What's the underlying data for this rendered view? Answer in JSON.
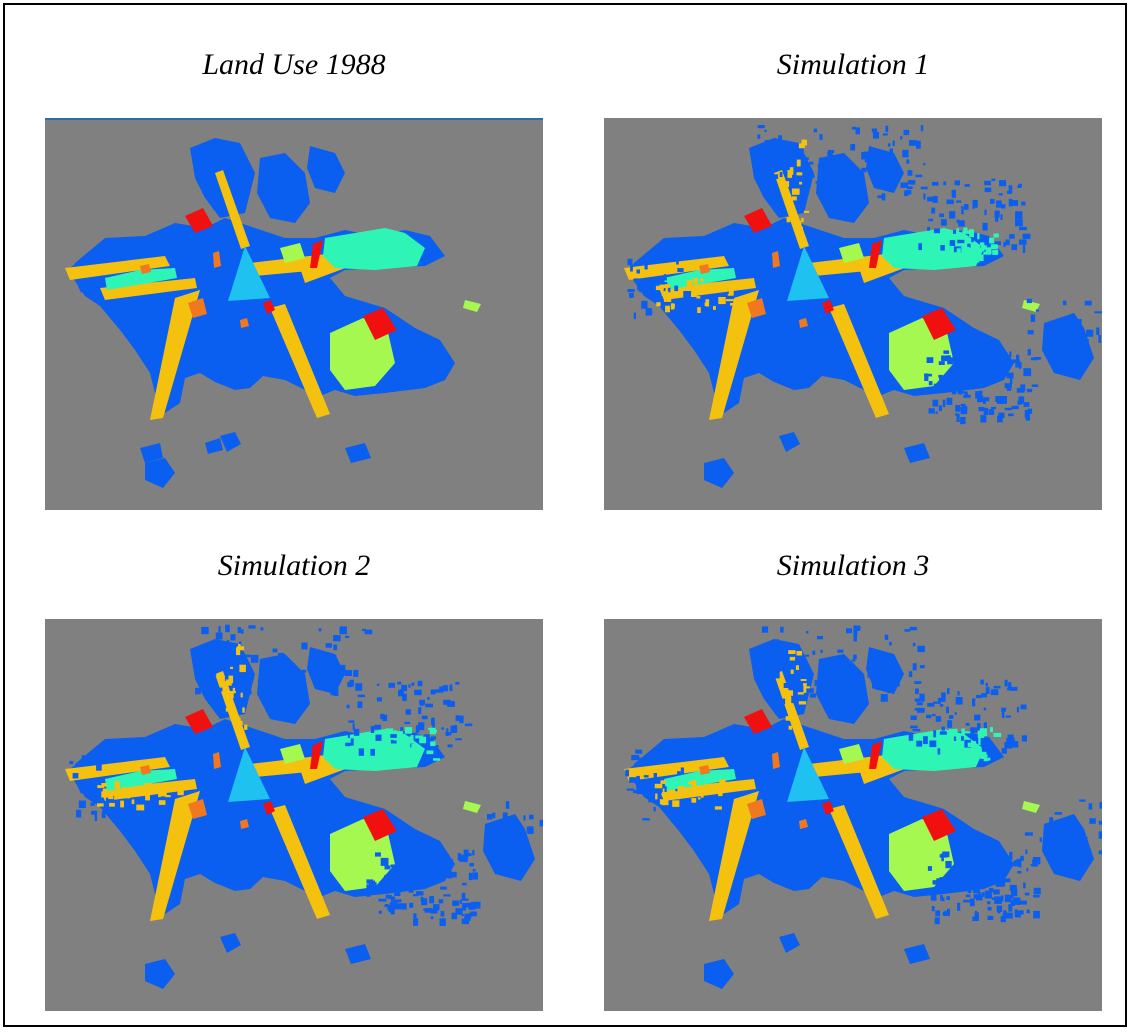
{
  "figure": {
    "panels": [
      {
        "title": "Land Use 1988"
      },
      {
        "title": "Simulation 1"
      },
      {
        "title": "Simulation 2"
      },
      {
        "title": "Simulation 3"
      }
    ]
  },
  "legend_colors": {
    "background": "#808080",
    "residential": "#0a5ef0",
    "roads_corridors": "#f5c10f",
    "commercial_center": "#1ec1ef",
    "industrial": "#2ef5b6",
    "green_space": "#a4f850",
    "special_use": "#f01010",
    "public_facilities": "#f0781e"
  }
}
